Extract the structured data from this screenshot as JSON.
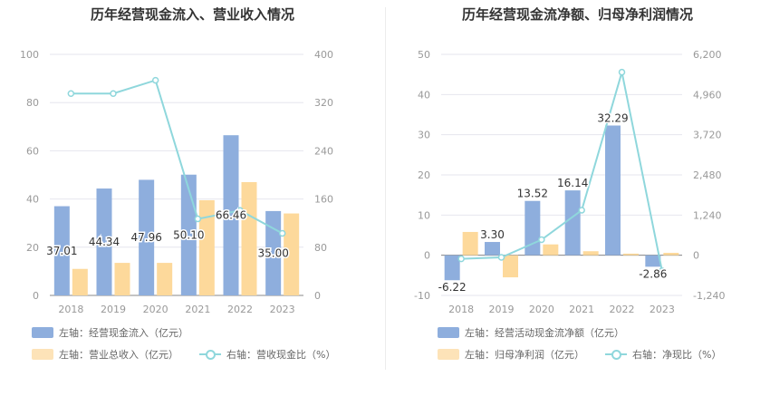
{
  "chart_data": [
    {
      "type": "bar",
      "title": "历年经营现金流入、营业收入情况",
      "categories": [
        "2018",
        "2019",
        "2020",
        "2021",
        "2022",
        "2023"
      ],
      "y_left": {
        "ticks": [
          "0",
          "20",
          "40",
          "60",
          "80",
          "100"
        ],
        "ylim": [
          0,
          100
        ]
      },
      "y_right": {
        "ticks": [
          "0",
          "80",
          "160",
          "240",
          "320",
          "400"
        ],
        "ylim": [
          0,
          400
        ]
      },
      "series": [
        {
          "name": "左轴：经营现金流入（亿元）",
          "kind": "bar",
          "axis": "left",
          "color": "#8eaedd",
          "values": [
            37.01,
            44.34,
            47.96,
            50.1,
            66.46,
            35.0
          ],
          "labels": [
            "37.01",
            "44.34",
            "47.96",
            "50.10",
            "66.46",
            "35.00"
          ]
        },
        {
          "name": "左轴：营业总收入（亿元）",
          "kind": "bar",
          "axis": "left",
          "color": "#fdd99b",
          "values": [
            11,
            13.5,
            13.5,
            39.5,
            47,
            34
          ]
        },
        {
          "name": "右轴：营收现金比（%）",
          "kind": "line",
          "axis": "right",
          "color": "#8fd7dc",
          "values": [
            335,
            335,
            357,
            127,
            141,
            103
          ]
        }
      ]
    },
    {
      "type": "bar",
      "title": "历年经营现金流净额、归母净利润情况",
      "categories": [
        "2018",
        "2019",
        "2020",
        "2021",
        "2022",
        "2023"
      ],
      "y_left": {
        "ticks": [
          "-10",
          "0",
          "10",
          "20",
          "30",
          "40",
          "50"
        ],
        "ylim": [
          -10,
          50
        ]
      },
      "y_right": {
        "ticks": [
          "-1,240",
          "0",
          "1,240",
          "2,480",
          "3,720",
          "4,960",
          "6,200"
        ],
        "ylim": [
          -1240,
          6200
        ]
      },
      "series": [
        {
          "name": "左轴：经营活动现金流净额（亿元）",
          "kind": "bar",
          "axis": "left",
          "color": "#8eaedd",
          "values": [
            -6.22,
            3.3,
            13.52,
            16.14,
            32.29,
            -2.86
          ],
          "labels": [
            "-6.22",
            "3.30",
            "13.52",
            "16.14",
            "32.29",
            "-2.86"
          ]
        },
        {
          "name": "左轴：归母净利润（亿元）",
          "kind": "bar",
          "axis": "left",
          "color": "#fdd99b",
          "values": [
            5.8,
            -5.5,
            2.7,
            1.0,
            0.4,
            0.6
          ]
        },
        {
          "name": "右轴：净现比（%）",
          "kind": "line",
          "axis": "right",
          "color": "#8fd7dc",
          "values": [
            -110,
            -65,
            480,
            1390,
            5650,
            -480
          ]
        }
      ]
    }
  ]
}
